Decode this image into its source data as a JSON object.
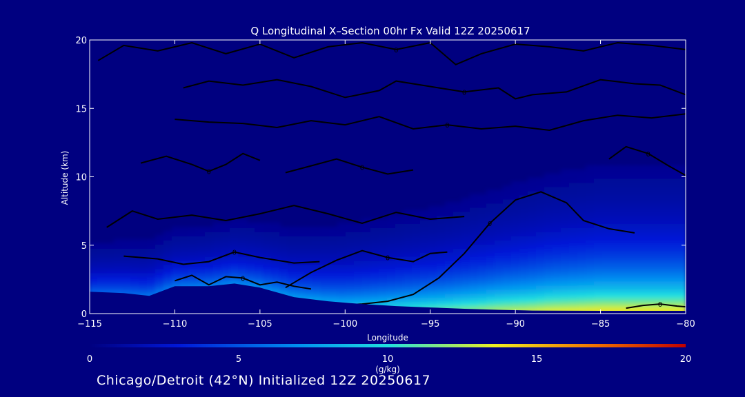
{
  "chart_data": {
    "type": "heatmap",
    "title": "Q Longitudinal X–Section 00hr  Fx Valid 12Z 20250617",
    "xlabel": "Longitude",
    "ylabel": "Altitude (km)",
    "xlim": [
      -115,
      -80
    ],
    "ylim": [
      0,
      20
    ],
    "x_ticks": [
      -115,
      -110,
      -105,
      -100,
      -95,
      -90,
      -85,
      -80
    ],
    "x_tick_labels": [
      "−115",
      "−110",
      "−105",
      "−100",
      "−95",
      "−90",
      "−85",
      "−80"
    ],
    "y_ticks": [
      0,
      5,
      10,
      15,
      20
    ],
    "y_tick_labels": [
      "0",
      "5",
      "10",
      "15",
      "20"
    ],
    "colorbar": {
      "min": 0,
      "max": 20,
      "ticks": [
        0,
        5,
        10,
        15,
        20
      ],
      "tick_labels": [
        "0",
        "5",
        "10",
        "15",
        "20"
      ],
      "unit": "(g/kg)",
      "colors": [
        "#000080",
        "#0018d8",
        "#0090f0",
        "#20e0e0",
        "#f0f020",
        "#f07000",
        "#c00000"
      ]
    },
    "moisture_profile": {
      "x": [
        -115,
        -112,
        -109,
        -106,
        -103,
        -100,
        -97,
        -94,
        -91,
        -88,
        -85,
        -82,
        -80
      ],
      "surface_q": [
        5.5,
        6,
        6.5,
        7,
        7.5,
        8,
        9.5,
        11,
        12.5,
        13.5,
        14,
        14,
        14
      ],
      "scale_height_km": [
        1.6,
        1.7,
        1.8,
        1.9,
        2.0,
        2.2,
        2.4,
        2.6,
        2.9,
        3.2,
        3.4,
        3.4,
        3.4
      ]
    },
    "terrain": {
      "x": [
        -115,
        -113,
        -111.5,
        -110,
        -108,
        -106.5,
        -105,
        -103,
        -101,
        -99,
        -97,
        -95,
        -93,
        -91,
        -89,
        -85,
        -80
      ],
      "z": [
        1.6,
        1.5,
        1.3,
        2.0,
        2.0,
        2.2,
        1.9,
        1.2,
        0.9,
        0.7,
        0.55,
        0.45,
        0.35,
        0.28,
        0.22,
        0.2,
        0.2
      ]
    },
    "contour_labels": [
      "0",
      "0",
      "0",
      "0",
      "0",
      "0",
      "0",
      "0",
      "0",
      "0",
      "0"
    ],
    "caption": "Chicago/Detroit (42°N) Initialized 12Z 20250617"
  }
}
